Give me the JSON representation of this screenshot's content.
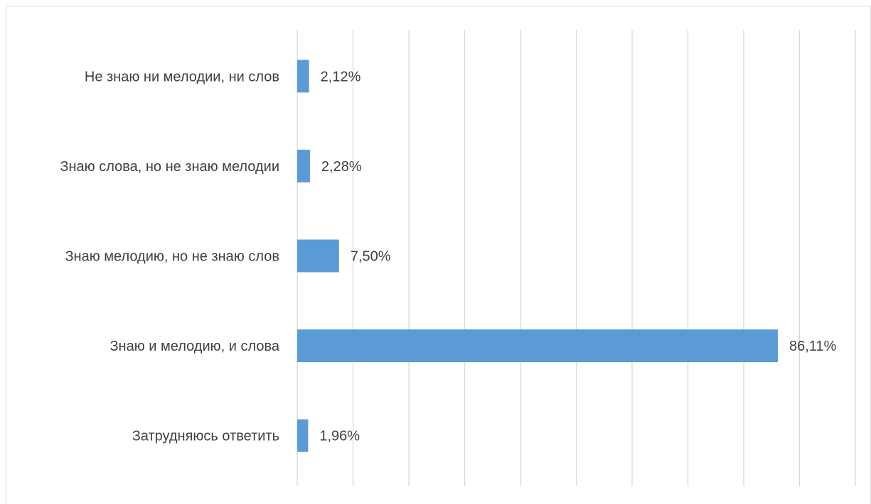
{
  "chart_data": {
    "type": "bar",
    "orientation": "horizontal",
    "categories": [
      "Не знаю ни мелодии, ни слов",
      "Знаю слова, но не знаю мелодии",
      "Знаю мелодию, но не знаю слов",
      "Знаю и мелодию, и слова",
      "Затрудняюсь ответить"
    ],
    "values": [
      2.12,
      2.28,
      7.5,
      86.11,
      1.96
    ],
    "data_labels": [
      "2,12%",
      "2,28%",
      "7,50%",
      "86,11%",
      "1,96%"
    ],
    "xlim": [
      0,
      100
    ],
    "grid": true,
    "legend": "none",
    "bar_color": "#5b9bd5",
    "title": "",
    "xlabel": "",
    "ylabel": ""
  }
}
